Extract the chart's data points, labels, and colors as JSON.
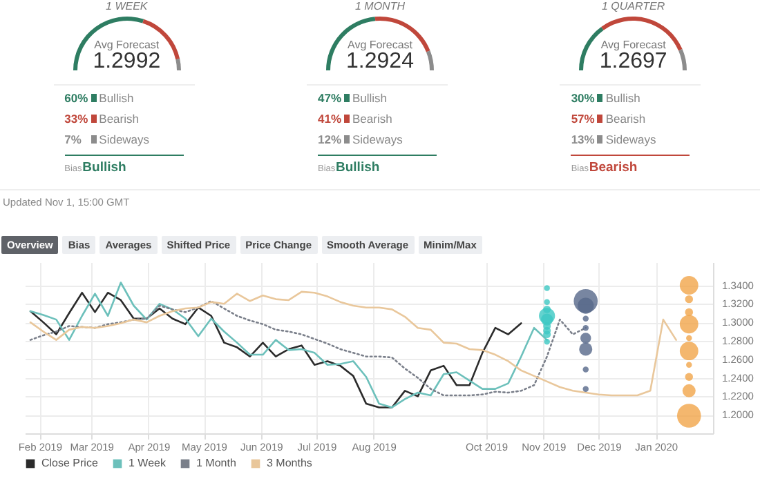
{
  "chart_data": [
    {
      "type": "donut",
      "title": "1 WEEK",
      "categories": [
        "Bullish",
        "Bearish",
        "Sideways"
      ],
      "values": [
        60,
        33,
        7
      ],
      "colors": [
        "#2e7d62",
        "#c0473b",
        "#8c8c8c"
      ],
      "value_labels": [
        "60%",
        "33%",
        "7%"
      ],
      "legend": "bottom",
      "annotations": [
        "Avg Forecast",
        "1.2992",
        "Bias",
        "Bullish"
      ]
    },
    {
      "type": "donut",
      "title": "1 MONTH",
      "categories": [
        "Bullish",
        "Bearish",
        "Sideways"
      ],
      "values": [
        47,
        41,
        12
      ],
      "colors": [
        "#2e7d62",
        "#c0473b",
        "#8c8c8c"
      ],
      "value_labels": [
        "47%",
        "41%",
        "12%"
      ],
      "legend": "bottom",
      "annotations": [
        "Avg Forecast",
        "1.2924",
        "Bias",
        "Bullish"
      ]
    },
    {
      "type": "donut",
      "title": "1 QUARTER",
      "categories": [
        "Bullish",
        "Bearish",
        "Sideways"
      ],
      "values": [
        30,
        57,
        13
      ],
      "colors": [
        "#2e7d62",
        "#c0473b",
        "#8c8c8c"
      ],
      "value_labels": [
        "30%",
        "57%",
        "13%"
      ],
      "legend": "bottom",
      "annotations": [
        "Avg Forecast",
        "1.2697",
        "Bias",
        "Bearish"
      ]
    },
    {
      "type": "line",
      "annotations": [
        "Updated Nov 1, 15:00 GMT",
        "Overview",
        "Bias",
        "Averages",
        "Shifted Price",
        "Price Change",
        "Smooth Average",
        "Minim/Max"
      ],
      "x": [
        "2019-01-27",
        "2019-02-03",
        "2019-02-10",
        "2019-02-17",
        "2019-02-24",
        "2019-03-03",
        "2019-03-10",
        "2019-03-17",
        "2019-03-24",
        "2019-03-31",
        "2019-04-07",
        "2019-04-14",
        "2019-04-21",
        "2019-04-28",
        "2019-05-05",
        "2019-05-12",
        "2019-05-19",
        "2019-05-26",
        "2019-06-02",
        "2019-06-09",
        "2019-06-16",
        "2019-06-23",
        "2019-06-30",
        "2019-07-07",
        "2019-07-14",
        "2019-07-21",
        "2019-07-28",
        "2019-08-04",
        "2019-08-11",
        "2019-08-18",
        "2019-08-25",
        "2019-09-01",
        "2019-09-08",
        "2019-09-15",
        "2019-09-22",
        "2019-09-29",
        "2019-10-06",
        "2019-10-13",
        "2019-10-20",
        "2019-10-27",
        "2019-11-03",
        "2019-11-10",
        "2019-11-17",
        "2019-11-24",
        "2019-12-01",
        "2019-12-08",
        "2019-12-15",
        "2019-12-22",
        "2019-12-29",
        "2020-01-05",
        "2020-01-12"
      ],
      "series": [
        {
          "name": "Close Price",
          "color": "#2b2b2b",
          "values": [
            1.312,
            1.3,
            1.287,
            1.31,
            1.332,
            1.311,
            1.332,
            1.324,
            1.304,
            1.304,
            1.315,
            1.304,
            1.298,
            1.316,
            1.307,
            1.278,
            1.273,
            1.263,
            1.278,
            1.263,
            1.271,
            1.275,
            1.254,
            1.258,
            1.253,
            1.242,
            1.212,
            1.208,
            1.208,
            1.226,
            1.22,
            1.248,
            1.253,
            1.232,
            1.232,
            1.267,
            1.294,
            1.287,
            1.299,
            null,
            null,
            null,
            null,
            null,
            null,
            null,
            null,
            null,
            null,
            null,
            null
          ]
        },
        {
          "name": "1 Week",
          "color": "#6cc0bb",
          "values": [
            1.312,
            1.308,
            1.303,
            1.281,
            1.307,
            1.331,
            1.307,
            1.343,
            1.318,
            1.303,
            1.32,
            1.314,
            1.304,
            1.285,
            1.304,
            1.29,
            1.278,
            1.265,
            1.265,
            1.281,
            1.27,
            1.271,
            1.267,
            1.254,
            1.255,
            1.258,
            1.241,
            1.212,
            1.208,
            1.217,
            1.224,
            1.221,
            1.244,
            1.246,
            1.237,
            1.228,
            1.228,
            1.234,
            1.263,
            1.294,
            1.281,
            null,
            null,
            null,
            null,
            null,
            null,
            null,
            null,
            null,
            null
          ]
        },
        {
          "name": "1 Month",
          "color": "#7a7f8a",
          "line_style": "dotted",
          "values": [
            1.281,
            1.286,
            1.29,
            1.296,
            1.295,
            1.294,
            1.298,
            1.3,
            1.303,
            1.304,
            1.318,
            1.314,
            1.311,
            1.316,
            1.323,
            1.315,
            1.307,
            1.302,
            1.298,
            1.292,
            1.29,
            1.287,
            1.282,
            1.277,
            1.271,
            1.267,
            1.263,
            1.263,
            1.262,
            1.25,
            1.24,
            1.228,
            1.221,
            1.221,
            1.221,
            1.222,
            1.225,
            1.224,
            1.226,
            1.232,
            1.263,
            1.303,
            1.287,
            1.294,
            null,
            null,
            null,
            null,
            null,
            null,
            null
          ]
        },
        {
          "name": "3 Months",
          "color": "#e9c79b",
          "values": [
            1.3,
            1.29,
            1.281,
            1.292,
            1.295,
            1.294,
            1.296,
            1.299,
            1.303,
            1.3,
            1.307,
            1.312,
            1.315,
            1.316,
            1.322,
            1.32,
            1.331,
            1.323,
            1.329,
            1.325,
            1.324,
            1.333,
            1.332,
            1.328,
            1.322,
            1.318,
            1.316,
            1.316,
            1.314,
            1.306,
            1.294,
            1.292,
            1.278,
            1.277,
            1.271,
            1.27,
            1.265,
            1.258,
            1.248,
            1.242,
            1.236,
            1.23,
            1.226,
            1.224,
            1.222,
            1.221,
            1.221,
            1.221,
            1.226,
            1.303,
            1.281
          ]
        },
        {
          "type": "bubble",
          "color": "#3cc8c3",
          "x": [
            "2019-11-03",
            "2019-11-03",
            "2019-11-03",
            "2019-11-03",
            "2019-11-03",
            "2019-11-03",
            "2019-11-03",
            "2019-11-03",
            "2019-11-03"
          ],
          "values": [
            1.337,
            1.322,
            1.314,
            1.307,
            1.303,
            1.296,
            1.291,
            1.287,
            1.279
          ],
          "sizes": [
            0.06,
            0.06,
            0.1,
            0.45,
            0.25,
            0.1,
            0.1,
            0.1,
            0.06
          ]
        },
        {
          "type": "bubble",
          "color": "#56688a",
          "x": [
            "2019-11-24",
            "2019-11-24",
            "2019-11-24",
            "2019-11-24",
            "2019-11-24",
            "2019-11-24",
            "2019-11-24",
            "2019-11-24"
          ],
          "values": [
            1.323,
            1.318,
            1.304,
            1.294,
            1.283,
            1.271,
            1.249,
            1.228
          ],
          "sizes": [
            1,
            0.45,
            0.06,
            0.06,
            0.2,
            0.3,
            0.06,
            0.06
          ]
        },
        {
          "type": "bubble",
          "color": "#f1a54a",
          "x": [
            "2020-01-19",
            "2020-01-19",
            "2020-01-19",
            "2020-01-19",
            "2020-01-19",
            "2020-01-19",
            "2020-01-19",
            "2020-01-19",
            "2020-01-19",
            "2020-01-19"
          ],
          "values": [
            1.34,
            1.325,
            1.311,
            1.298,
            1.283,
            1.269,
            1.254,
            1.241,
            1.226,
            1.199
          ],
          "sizes": [
            0.6,
            0.11,
            0.11,
            0.6,
            0.06,
            0.6,
            0.06,
            0.11,
            0.3,
            1
          ]
        }
      ],
      "xlim": [
        "2019-01-24",
        "2020-02-01"
      ],
      "xticks": [
        {
          "value": "2019-02-01",
          "label": "Feb 2019"
        },
        {
          "value": "2019-03-01",
          "label": "Mar 2019"
        },
        {
          "value": "2019-04-01",
          "label": "Apr 2019"
        },
        {
          "value": "2019-05-01",
          "label": "May 2019"
        },
        {
          "value": "2019-06-01",
          "label": "Jun 2019"
        },
        {
          "value": "2019-07-01",
          "label": "Jul 2019"
        },
        {
          "value": "2019-08-01",
          "label": "Aug 2019"
        },
        {
          "value": "2019-10-01",
          "label": "Oct 2019"
        },
        {
          "value": "2019-11-01",
          "label": "Nov 2019"
        },
        {
          "value": "2019-12-01",
          "label": "Dec 2019"
        },
        {
          "value": "2020-01-01",
          "label": "Jan 2020"
        }
      ],
      "ylim": [
        1.18,
        1.365
      ],
      "yticks": [
        {
          "value": 1.2,
          "label": "1.2000"
        },
        {
          "value": 1.22,
          "label": "1.2200"
        },
        {
          "value": 1.24,
          "label": "1.2400"
        },
        {
          "value": 1.26,
          "label": "1.2600"
        },
        {
          "value": 1.28,
          "label": "1.2800"
        },
        {
          "value": 1.3,
          "label": "1.3000"
        },
        {
          "value": 1.32,
          "label": "1.3200"
        },
        {
          "value": 1.34,
          "label": "1.3400"
        }
      ],
      "grid": true,
      "legend": "bottom"
    }
  ]
}
